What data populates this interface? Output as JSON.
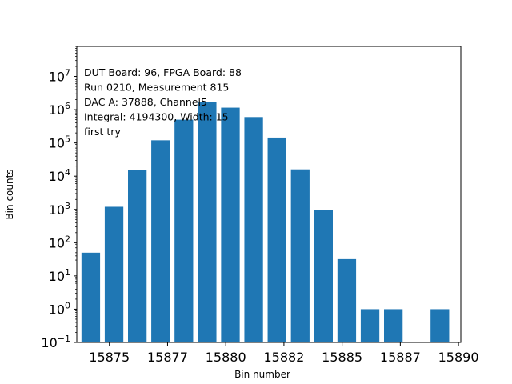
{
  "chart_data": {
    "type": "bar",
    "title": "",
    "xlabel": "Bin number",
    "ylabel": "Bin counts",
    "yscale": "log",
    "xlim": [
      15873.4,
      15889.9
    ],
    "ylim": [
      0.1,
      80000000
    ],
    "bar_color": "#1f77b4",
    "x": [
      15874,
      15875,
      15876,
      15877,
      15878,
      15879,
      15880,
      15881,
      15882,
      15883,
      15884,
      15885,
      15886,
      15887,
      15889
    ],
    "values": [
      50,
      1200,
      15000,
      120000,
      500000,
      1700000,
      1150000,
      600000,
      145000,
      16000,
      950,
      32,
      1,
      1,
      1
    ],
    "x_ticks": [
      {
        "value": 15874.8,
        "label": "15875"
      },
      {
        "value": 15877.3,
        "label": "15877"
      },
      {
        "value": 15879.8,
        "label": "15880"
      },
      {
        "value": 15882.3,
        "label": "15882"
      },
      {
        "value": 15884.8,
        "label": "15885"
      },
      {
        "value": 15887.3,
        "label": "15887"
      },
      {
        "value": 15889.8,
        "label": "15890"
      }
    ],
    "y_ticks": [
      {
        "exp": -1,
        "base": "10",
        "sup": "−1"
      },
      {
        "exp": 0,
        "base": "10",
        "sup": "0"
      },
      {
        "exp": 1,
        "base": "10",
        "sup": "1"
      },
      {
        "exp": 2,
        "base": "10",
        "sup": "2"
      },
      {
        "exp": 3,
        "base": "10",
        "sup": "3"
      },
      {
        "exp": 4,
        "base": "10",
        "sup": "4"
      },
      {
        "exp": 5,
        "base": "10",
        "sup": "5"
      },
      {
        "exp": 6,
        "base": "10",
        "sup": "6"
      },
      {
        "exp": 7,
        "base": "10",
        "sup": "7"
      }
    ],
    "annotation_lines": [
      "DUT Board: 96, FPGA Board: 88",
      "Run 0210, Measurement 815",
      "DAC A: 37888, Channel5",
      "Integral: 4194300, Width: 15",
      "first try"
    ]
  }
}
